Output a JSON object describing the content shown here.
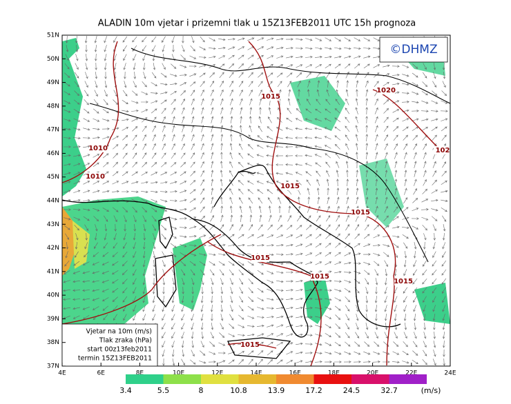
{
  "header": {
    "title": "ALADIN 10m vjetar i prizemni tlak u 15Z13FEB2011 UTC 15h prognoza",
    "logo": "©DHMZ"
  },
  "map": {
    "lat_labels": [
      "51N",
      "50N",
      "49N",
      "48N",
      "47N",
      "46N",
      "45N",
      "44N",
      "43N",
      "42N",
      "41N",
      "40N",
      "39N",
      "38N",
      "37N"
    ],
    "lon_labels": [
      "4E",
      "6E",
      "8E",
      "10E",
      "12E",
      "14E",
      "16E",
      "18E",
      "20E",
      "22E",
      "24E"
    ],
    "isobar_labels": [
      "1015",
      "1010",
      "1010",
      "1015",
      "1015",
      "1015",
      "1015",
      "1015",
      "1015",
      "1020",
      "102"
    ],
    "info": [
      "Vjetar na 10m (m/s)",
      "Tlak zraka (hPa)",
      "start 00z13feb2011",
      "termin 15Z13FEB2011"
    ]
  },
  "legend": {
    "values": [
      3.4,
      5.5,
      8,
      10.8,
      13.9,
      17.2,
      24.5,
      32.7
    ],
    "unit": "(m/s)",
    "colors": [
      "#2fd08a",
      "#8ee04a",
      "#e0e040",
      "#e6b830",
      "#f08a30",
      "#e81010",
      "#d8106a",
      "#a020c8"
    ]
  }
}
